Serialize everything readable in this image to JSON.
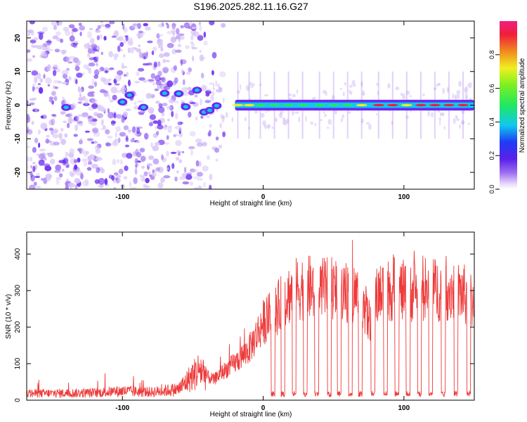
{
  "title": "S196.2025.282.11.16.G27",
  "colors": {
    "snr_line": "#ee3a3a",
    "ridge_low": "#6a2cf0",
    "ridge_mid": "#10c8ee",
    "ridge_high": "#e8203a",
    "speckle_light": "#d9c6f7",
    "speckle_mid": "#a77cf0",
    "speckle_dark": "#6a2cf0"
  },
  "chart_data": [
    {
      "type": "heatmap",
      "title": "",
      "xlabel": "Height of straight line (km)",
      "ylabel": "Frequency (Hz)",
      "xlim": [
        -168,
        150
      ],
      "ylim": [
        -25,
        25
      ],
      "xticks": [
        -100,
        0,
        100
      ],
      "yticks": [
        -20,
        -10,
        0,
        10,
        20
      ],
      "colorbar": {
        "label": "Normalized spectral amplitude",
        "range": [
          0.0,
          1.0
        ],
        "ticks": [
          "0.0",
          "0.2",
          "0.4",
          "0.6",
          "0.8"
        ],
        "tick_values": [
          0.0,
          0.2,
          0.4,
          0.6,
          0.8
        ],
        "colormap": "rainbow: purple-blue-cyan-green-yellow-red-magenta"
      },
      "noise_region_x": [
        -168,
        -40
      ],
      "ridge": {
        "description": "Spectral line near 0 Hz, strong for heights above about -20 km",
        "x_start": -20,
        "x_end": 150,
        "freq_hz": 0,
        "segments_x": [
          -18,
          -10,
          -2,
          8,
          18,
          28,
          40,
          50,
          60,
          70,
          82,
          92,
          102,
          112,
          122,
          132,
          142
        ],
        "peak_amplitude": [
          0.75,
          0.7,
          0.6,
          0.55,
          0.6,
          0.65,
          0.6,
          0.55,
          0.6,
          0.7,
          0.95,
          0.9,
          0.85,
          0.9,
          0.95,
          0.9,
          0.9
        ]
      },
      "blobs_x": [
        -140,
        -100,
        -95,
        -85,
        -70,
        -60,
        -55,
        -47,
        -42,
        -38,
        -33
      ]
    },
    {
      "type": "line",
      "title": "",
      "xlabel": "Height of straight line (km)",
      "ylabel": "SNR (10 * v/v)",
      "xlim": [
        -168,
        150
      ],
      "ylim": [
        0,
        460
      ],
      "xticks": [
        -100,
        0,
        100
      ],
      "yticks": [
        0,
        100,
        200,
        300,
        400
      ],
      "series": [
        {
          "name": "SNR",
          "envelope_x": [
            -168,
            -120,
            -100,
            -80,
            -60,
            -52,
            -45,
            -40,
            -35,
            -30,
            -20,
            -10,
            -5,
            0,
            5,
            10,
            15,
            20,
            25,
            30,
            40,
            50,
            60,
            70,
            75,
            80,
            85,
            90,
            100,
            110,
            120,
            130,
            140,
            150
          ],
          "envelope_y": [
            18,
            20,
            25,
            22,
            30,
            60,
            85,
            70,
            60,
            80,
            110,
            150,
            190,
            230,
            250,
            270,
            300,
            320,
            330,
            335,
            325,
            330,
            320,
            310,
            230,
            300,
            320,
            330,
            320,
            330,
            325,
            330,
            320,
            290
          ],
          "dips_x": [
            7,
            14,
            22,
            30,
            38,
            47,
            54,
            62,
            69,
            78,
            87,
            95,
            103,
            111,
            119,
            128,
            137,
            146
          ],
          "dip_floor": 10
        }
      ]
    }
  ]
}
